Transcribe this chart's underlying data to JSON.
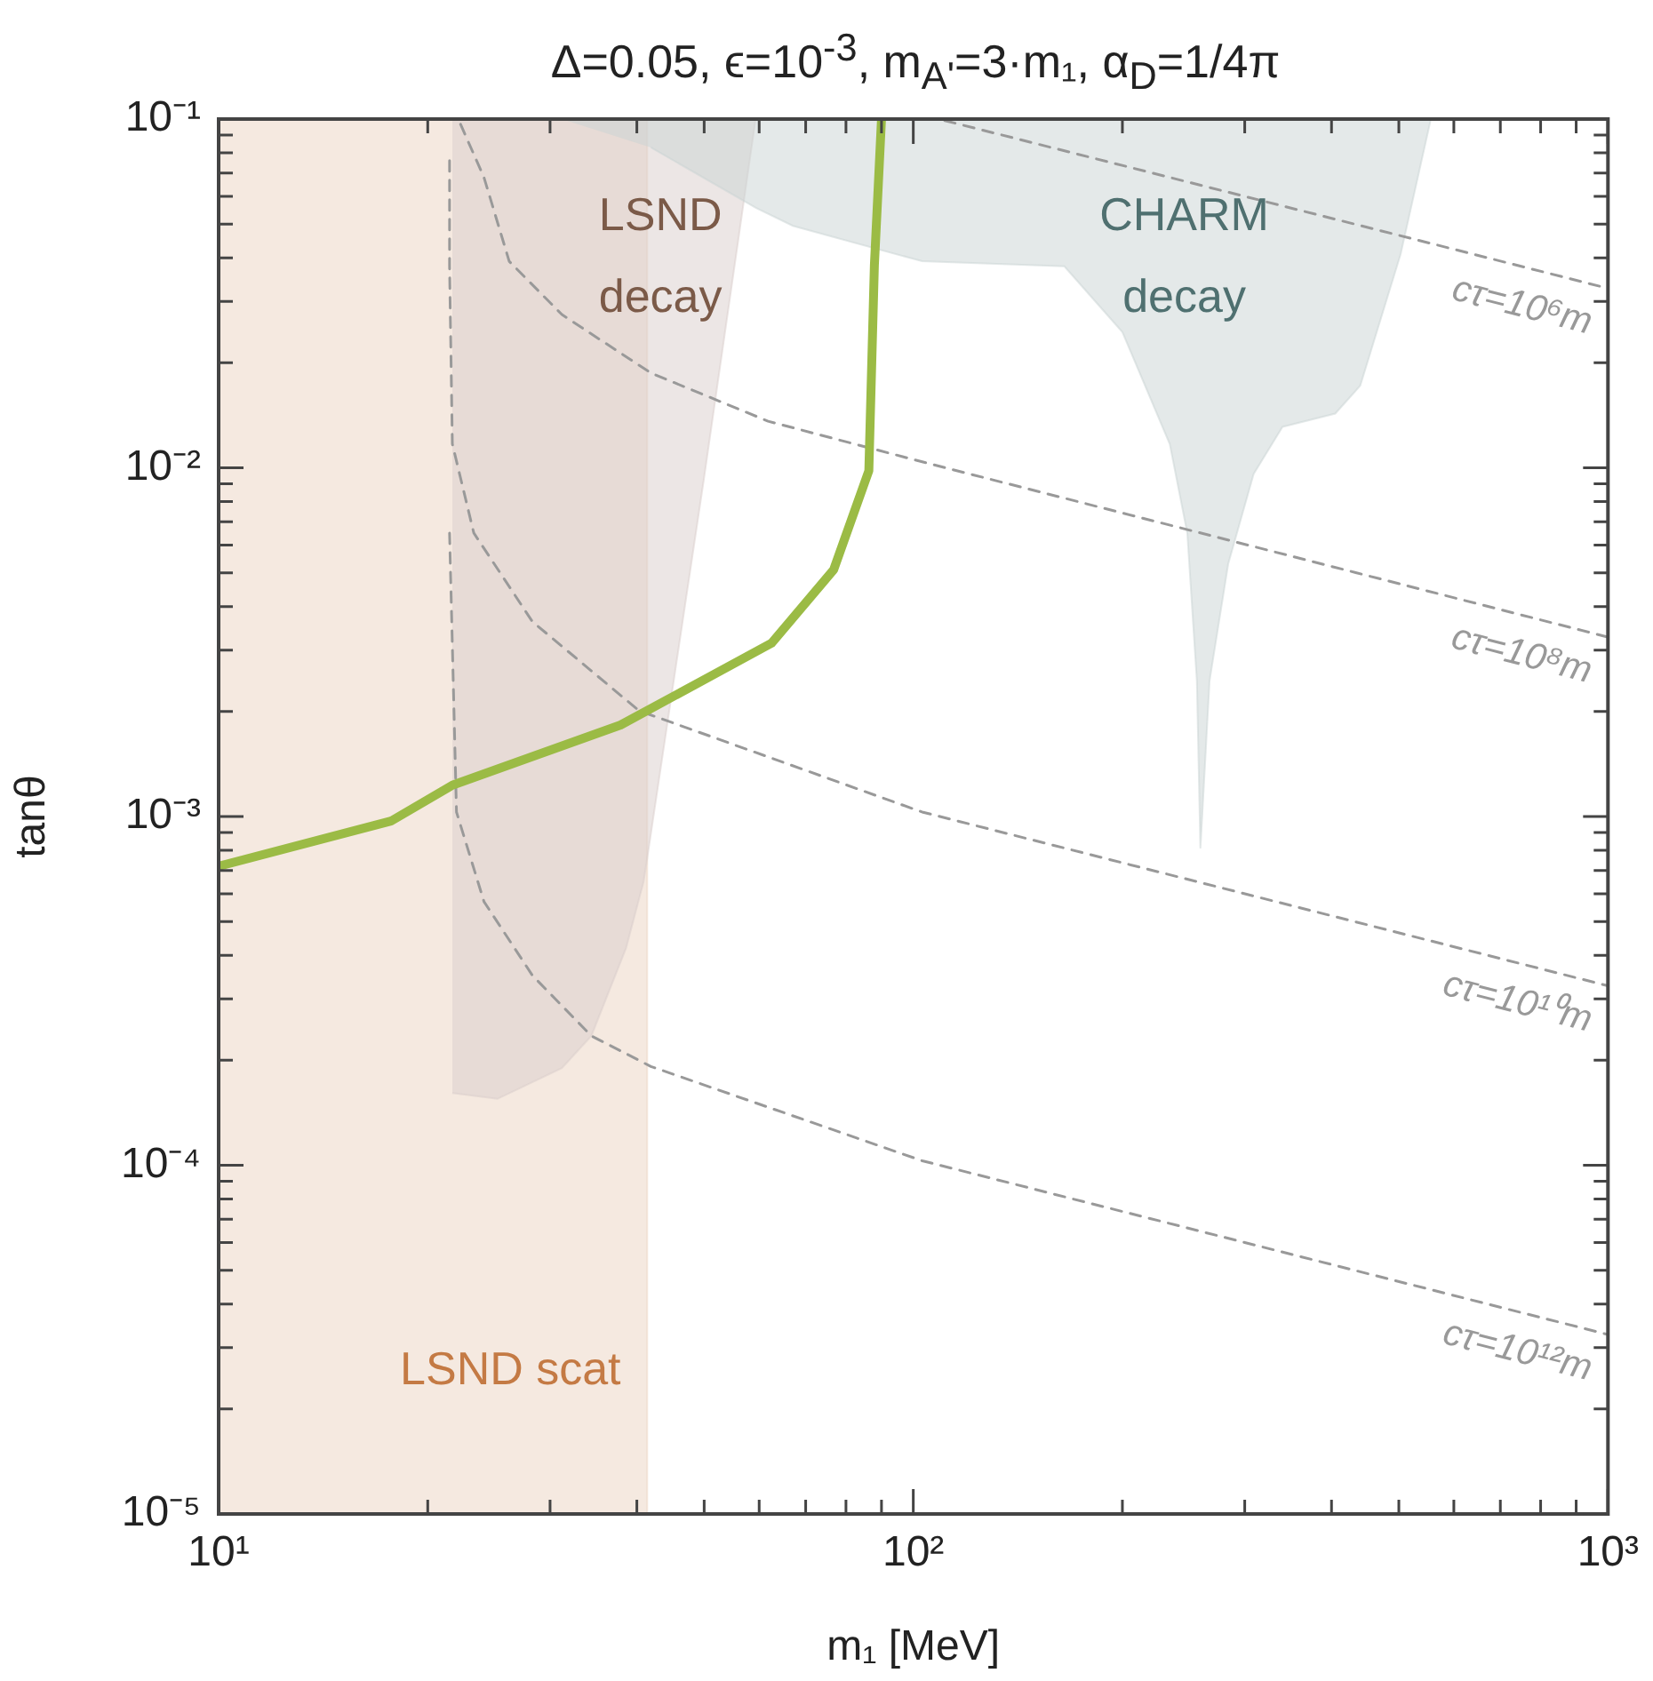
{
  "chart_data": {
    "type": "line",
    "title": "Δ=0.05, ϵ=10$^{-3}$, m$_{A'}$=3·m₁, α$_{D}$=1/4π",
    "xlabel": "m₁ [MeV]",
    "ylabel": "tanθ",
    "log": "xy",
    "legend": false,
    "marker": "none",
    "annotations": [
      "LSND scat",
      "LSND decay",
      "CHARM decay"
    ],
    "xlim": [
      10,
      1000
    ],
    "ylim": [
      1e-05,
      0.1
    ],
    "xticks": [
      {
        "value": 10,
        "label": "10¹"
      },
      {
        "value": 20,
        "label": null
      },
      {
        "value": 30,
        "label": null
      },
      {
        "value": 40,
        "label": null
      },
      {
        "value": 50,
        "label": null
      },
      {
        "value": 60,
        "label": null
      },
      {
        "value": 70,
        "label": null
      },
      {
        "value": 80,
        "label": null
      },
      {
        "value": 90,
        "label": null
      },
      {
        "value": 100,
        "label": "10²"
      },
      {
        "value": 200,
        "label": null
      },
      {
        "value": 300,
        "label": null
      },
      {
        "value": 400,
        "label": null
      },
      {
        "value": 500,
        "label": null
      },
      {
        "value": 600,
        "label": null
      },
      {
        "value": 700,
        "label": null
      },
      {
        "value": 800,
        "label": null
      },
      {
        "value": 900,
        "label": null
      },
      {
        "value": 1000,
        "label": "10³"
      }
    ],
    "yticks": [
      {
        "value": 1e-05,
        "label": "10⁻⁵"
      },
      {
        "value": 2e-05,
        "label": null
      },
      {
        "value": 3e-05,
        "label": null
      },
      {
        "value": 4e-05,
        "label": null
      },
      {
        "value": 5e-05,
        "label": null
      },
      {
        "value": 6e-05,
        "label": null
      },
      {
        "value": 7e-05,
        "label": null
      },
      {
        "value": 8e-05,
        "label": null
      },
      {
        "value": 9e-05,
        "label": null
      },
      {
        "value": 0.0001,
        "label": "10⁻⁴"
      },
      {
        "value": 0.0002,
        "label": null
      },
      {
        "value": 0.0003,
        "label": null
      },
      {
        "value": 0.0004,
        "label": null
      },
      {
        "value": 0.0005,
        "label": null
      },
      {
        "value": 0.0006,
        "label": null
      },
      {
        "value": 0.0007,
        "label": null
      },
      {
        "value": 0.0008,
        "label": null
      },
      {
        "value": 0.0009,
        "label": null
      },
      {
        "value": 0.001,
        "label": "10⁻³"
      },
      {
        "value": 0.002,
        "label": null
      },
      {
        "value": 0.003,
        "label": null
      },
      {
        "value": 0.004,
        "label": null
      },
      {
        "value": 0.005,
        "label": null
      },
      {
        "value": 0.006,
        "label": null
      },
      {
        "value": 0.007,
        "label": null
      },
      {
        "value": 0.008,
        "label": null
      },
      {
        "value": 0.009,
        "label": null
      },
      {
        "value": 0.01,
        "label": "10⁻²"
      },
      {
        "value": 0.02,
        "label": null
      },
      {
        "value": 0.03,
        "label": null
      },
      {
        "value": 0.04,
        "label": null
      },
      {
        "value": 0.05,
        "label": null
      },
      {
        "value": 0.06,
        "label": null
      },
      {
        "value": 0.07,
        "label": null
      },
      {
        "value": 0.08,
        "label": null
      },
      {
        "value": 0.09,
        "label": null
      },
      {
        "value": 0.1,
        "label": "10⁻¹"
      }
    ],
    "series": [
      {
        "type": "area",
        "color": "#ebd3c1",
        "x": [
          10,
          41.4,
          41.4,
          10
        ],
        "values": [
          0.1,
          0.1,
          1e-05,
          1e-05
        ]
      },
      {
        "type": "area",
        "color": "#d9cdcb",
        "x": [
          21.7,
          59.3,
          50,
          41.4,
          40.9,
          38.6,
          34.4,
          31.2,
          25.2,
          21.7
        ],
        "values": [
          0.1,
          0.1,
          0.0094,
          0.00076,
          0.00065,
          0.00042,
          0.000235,
          0.00019,
          0.000155,
          0.000161
        ]
      },
      {
        "type": "area",
        "color": "#c9d3d3",
        "x": [
          31.2,
          556,
          503,
          440,
          405,
          340,
          309,
          284,
          267,
          259,
          256,
          248,
          234,
          200,
          165,
          103,
          67.1,
          59.4,
          41.9
        ],
        "values": [
          0.1,
          0.1,
          0.041,
          0.0172,
          0.0143,
          0.0131,
          0.0096,
          0.0053,
          0.00245,
          0.00081,
          0.00245,
          0.0065,
          0.0117,
          0.0245,
          0.0378,
          0.0391,
          0.0494,
          0.0556,
          0.0829
        ]
      },
      {
        "color": "#9bbb45",
        "line_style": "solid",
        "x": [
          10,
          17.7,
          21.7,
          37.9,
          62.5,
          76.8,
          86.3,
          87.9,
          90
        ],
        "values": [
          0.00072,
          0.00097,
          0.00123,
          0.00183,
          0.00314,
          0.0051,
          0.0098,
          0.038,
          0.1
        ]
      },
      {
        "name": "cτ=10⁶m",
        "color": "#999999",
        "line_style": "dashed",
        "x": [
          111,
          494,
          1000
        ],
        "values": [
          0.099,
          0.0467,
          0.0327
        ]
      },
      {
        "name": "cτ=10⁸m",
        "color": "#999999",
        "line_style": "dashed",
        "x": [
          22.3,
          24.1,
          26.2,
          31.2,
          41.9,
          61.8,
          103,
          1000
        ],
        "values": [
          0.0966,
          0.068,
          0.0391,
          0.0275,
          0.0187,
          0.0136,
          0.0104,
          0.00327
        ]
      },
      {
        "name": "cτ=10¹⁰m",
        "color": "#999999",
        "line_style": "dashed",
        "x": [
          21.5,
          21.5,
          21.7,
          23.3,
          28.3,
          40.3,
          103,
          1000
        ],
        "values": [
          0.076,
          0.0378,
          0.0117,
          0.0065,
          0.00362,
          0.00201,
          0.00103,
          0.000327
        ]
      },
      {
        "name": "cτ=10¹²m",
        "color": "#999999",
        "line_style": "dashed",
        "x": [
          21.5,
          22,
          24.1,
          28.3,
          34.4,
          41.9,
          103,
          1000
        ],
        "values": [
          0.0065,
          0.00103,
          0.00057,
          0.00035,
          0.000235,
          0.000192,
          0.000103,
          3.27e-05
        ]
      }
    ]
  }
}
